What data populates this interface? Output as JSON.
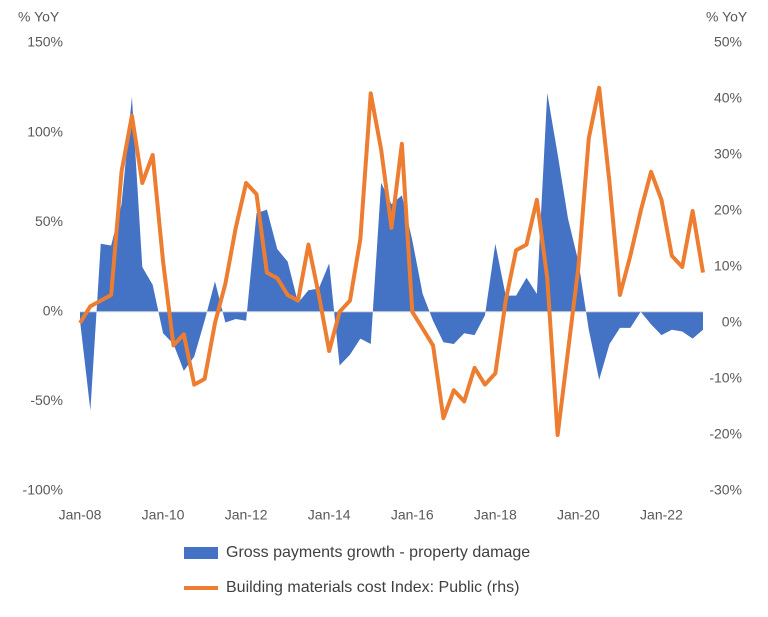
{
  "chart_data": {
    "type": "area_line",
    "y_label": "% YoY",
    "y2_label": "% YoY",
    "categories": [
      "Jan-08",
      null,
      null,
      null,
      null,
      null,
      null,
      null,
      "Jan-10",
      null,
      null,
      null,
      null,
      null,
      null,
      null,
      "Jan-12",
      null,
      null,
      null,
      null,
      null,
      null,
      null,
      "Jan-14",
      null,
      null,
      null,
      null,
      null,
      null,
      null,
      "Jan-16",
      null,
      null,
      null,
      null,
      null,
      null,
      null,
      "Jan-18",
      null,
      null,
      null,
      null,
      null,
      null,
      null,
      "Jan-20",
      null,
      null,
      null,
      null,
      null,
      null,
      null,
      "Jan-22",
      null,
      null,
      null,
      null
    ],
    "series": [
      {
        "name": "Gross payments growth - property damage",
        "type": "area",
        "color": "#4472c4",
        "values": [
          -5,
          -55,
          38,
          37,
          60,
          120,
          25,
          15,
          -12,
          -18,
          -33,
          -25,
          -5,
          17,
          -6,
          -4,
          -5,
          55,
          57,
          35,
          28,
          5,
          12,
          13,
          27,
          -30,
          -24,
          -15,
          -18,
          72,
          60,
          65,
          40,
          10,
          -5,
          -17,
          -18,
          -12,
          -13,
          -2,
          38,
          9,
          9,
          19,
          10,
          122,
          88,
          52,
          28,
          -10,
          -38,
          -18,
          -9,
          -9,
          0,
          -7,
          -13,
          -10,
          -11,
          -15,
          -10
        ]
      },
      {
        "name": "Building materials cost Index: Public (rhs)",
        "type": "line",
        "axis": "y2",
        "color": "#ed7d31",
        "values": [
          0,
          3,
          4,
          5,
          27,
          37,
          25,
          30,
          11,
          -4,
          -2,
          -11,
          -10,
          0,
          7,
          17,
          25,
          23,
          9,
          8,
          5,
          4,
          14,
          5,
          -5,
          2,
          4,
          15,
          41,
          31,
          17,
          32,
          2,
          -1,
          -4,
          -17,
          -12,
          -14,
          -8,
          -11,
          -9,
          4,
          13,
          14,
          22,
          8,
          -20,
          -5,
          10,
          33,
          42,
          25,
          5,
          12,
          20,
          27,
          22,
          12,
          10,
          20,
          9
        ]
      }
    ],
    "ylim": [
      -100,
      150
    ],
    "yticks": [
      {
        "value": -100,
        "label": "-100%"
      },
      {
        "value": -50,
        "label": "-50%"
      },
      {
        "value": 0,
        "label": "0%"
      },
      {
        "value": 50,
        "label": "50%"
      },
      {
        "value": 100,
        "label": "100%"
      },
      {
        "value": 150,
        "label": "150%"
      }
    ],
    "y2lim": [
      -30,
      50
    ],
    "y2ticks": [
      {
        "value": -30,
        "label": "-30%"
      },
      {
        "value": -20,
        "label": "-20%"
      },
      {
        "value": -10,
        "label": "-10%"
      },
      {
        "value": 0,
        "label": "0%"
      },
      {
        "value": 10,
        "label": "10%"
      },
      {
        "value": 20,
        "label": "20%"
      },
      {
        "value": 30,
        "label": "30%"
      },
      {
        "value": 40,
        "label": "40%"
      },
      {
        "value": 50,
        "label": "50%"
      }
    ],
    "grid": false
  }
}
